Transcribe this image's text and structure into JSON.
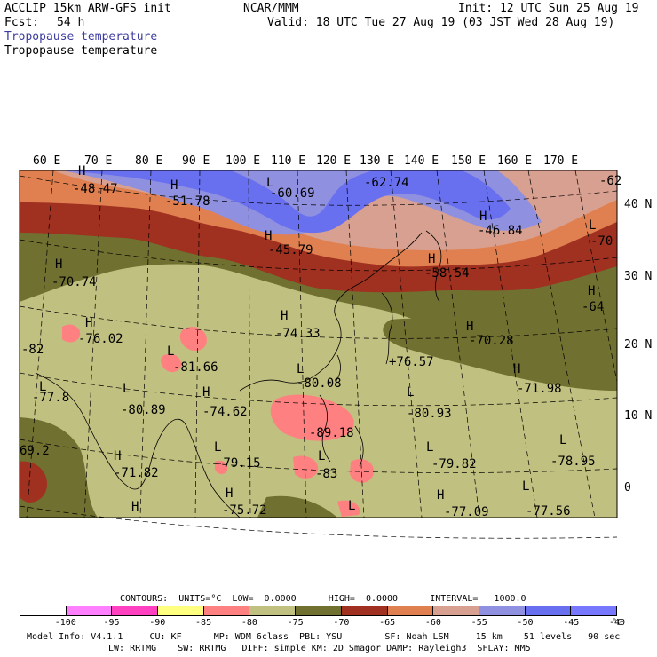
{
  "header": {
    "model_title": "ACCLIP 15km ARW-GFS init",
    "forecast_label": "Fcst:",
    "forecast_hours": "54 h",
    "center": "NCAR/MMM",
    "init_time": "Init: 12 UTC Sun 25 Aug 19",
    "valid_time": "Valid: 18 UTC Tue 27 Aug 19 (03 JST Wed 28 Aug 19)",
    "field_name_1": "Tropopause temperature",
    "field_name_2": "Tropopause temperature",
    "field_name_1_color": "#3c3ca0"
  },
  "map": {
    "longitude_labels": [
      "60 E",
      "70 E",
      "80 E",
      "90 E",
      "100 E",
      "110 E",
      "120 E",
      "130 E",
      "140 E",
      "150 E",
      "160 E",
      "170 E"
    ],
    "latitude_labels": [
      "40 N",
      "30 N",
      "20 N",
      "10 N",
      "0"
    ],
    "annotations": [
      {
        "marker": "H",
        "value": "-48.47"
      },
      {
        "marker": "H",
        "value": "-51.78"
      },
      {
        "marker": "L",
        "value": "-60.69"
      },
      {
        "marker": "",
        "value": "-62.74"
      },
      {
        "marker": "",
        "value": "-62"
      },
      {
        "marker": "H",
        "value": "-46.84"
      },
      {
        "marker": "H",
        "value": "-45.79"
      },
      {
        "marker": "L",
        "value": "-70"
      },
      {
        "marker": "H",
        "value": "-70.74"
      },
      {
        "marker": "H",
        "value": "-58.54"
      },
      {
        "marker": "H",
        "value": "-64"
      },
      {
        "marker": "H",
        "value": "-76.02"
      },
      {
        "marker": "H",
        "value": "-74.33"
      },
      {
        "marker": "H",
        "value": "-70.28"
      },
      {
        "marker": "",
        "value": "-82"
      },
      {
        "marker": "L",
        "value": "-81.66"
      },
      {
        "marker": "",
        "value": "+76.57"
      },
      {
        "marker": "L",
        "value": "-77.8"
      },
      {
        "marker": "L",
        "value": "-80.89"
      },
      {
        "marker": "H",
        "value": "-74.62"
      },
      {
        "marker": "L",
        "value": "-80.08"
      },
      {
        "marker": "H",
        "value": "-71.98"
      },
      {
        "marker": "L",
        "value": "-80.93"
      },
      {
        "marker": "",
        "value": "-89.18"
      },
      {
        "marker": "",
        "value": "69.2"
      },
      {
        "marker": "H",
        "value": "-71.82"
      },
      {
        "marker": "L",
        "value": "-79.15"
      },
      {
        "marker": "L",
        "value": "-79.82"
      },
      {
        "marker": "L",
        "value": "-78.95"
      },
      {
        "marker": "L",
        "value": "-83"
      },
      {
        "marker": "H",
        "value": "-75.72"
      },
      {
        "marker": "H",
        "value": "-77.09"
      },
      {
        "marker": "L",
        "value": "-77.56"
      },
      {
        "marker": "H",
        "value": ""
      },
      {
        "marker": "L",
        "value": ""
      }
    ]
  },
  "legend": {
    "contours_line": "CONTOURS:  UNITS=°C  LOW=  0.0000      HIGH=  0.0000      INTERVAL=   1000.0",
    "colors": [
      "#ffffff",
      "#ff80ff",
      "#ff40c0",
      "#ffff80",
      "#ff8080",
      "#c0c080",
      "#707030",
      "#a03020",
      "#e08050",
      "#d8a090",
      "#9090e0",
      "#6870f0",
      "#7878ff"
    ],
    "labels": [
      "-100",
      "-95",
      "-90",
      "-85",
      "-80",
      "-75",
      "-70",
      "-65",
      "-60",
      "-55",
      "-50",
      "-45",
      "-40"
    ],
    "unit": "°C"
  },
  "footer": {
    "line1": "Model Info: V4.1.1     CU: KF      MP: WDM 6class  PBL: YSU        SF: Noah LSM     15 km    51 levels   90 sec",
    "line2": "LW: RRTMG    SW: RRTMG   DIFF: simple KM: 2D Smagor DAMP: Rayleigh3  SFLAY: MM5"
  }
}
